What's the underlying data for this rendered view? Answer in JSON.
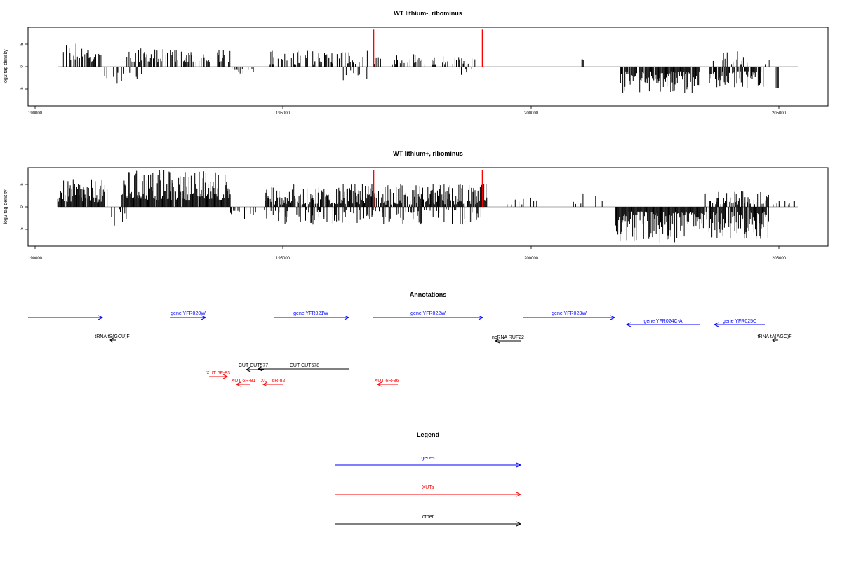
{
  "chart_data": [
    {
      "type": "bar",
      "title": "WT lithium-, ribominus",
      "ylabel": "log2 tag density",
      "xlim": [
        189800,
        206000
      ],
      "ylim": [
        -8.5,
        8.5
      ],
      "xticks": [
        "190000",
        "195000",
        "200000",
        "205000"
      ],
      "yticks": [
        "5",
        "0",
        "-5"
      ],
      "series": [
        {
          "color": "#000000",
          "note": "black spikes, log2 tag density by genomic position",
          "segments": [
            {
              "from": 190500,
              "to": 191300,
              "sign": 1,
              "min": 1,
              "max": 5.5,
              "density": 0.5
            },
            {
              "from": 191350,
              "to": 192100,
              "sign": -1,
              "min": 1,
              "max": 4,
              "density": 0.25
            },
            {
              "from": 191800,
              "to": 193900,
              "sign": 1,
              "min": 1,
              "max": 4,
              "density": 0.55
            },
            {
              "from": 193900,
              "to": 194400,
              "sign": -1,
              "min": 0.5,
              "max": 2.2,
              "density": 0.2
            },
            {
              "from": 194700,
              "to": 196700,
              "sign": 1,
              "min": 0.5,
              "max": 3.6,
              "density": 0.45
            },
            {
              "from": 195900,
              "to": 196700,
              "sign": -1,
              "min": 0.5,
              "max": 3,
              "density": 0.2
            },
            {
              "from": 196700,
              "to": 198900,
              "sign": 1,
              "min": 0.5,
              "max": 3,
              "density": 0.3
            },
            {
              "from": 198500,
              "to": 198800,
              "sign": -1,
              "min": 0.5,
              "max": 2.5,
              "density": 0.2
            },
            {
              "from": 201000,
              "to": 201050,
              "sign": 1,
              "min": 1.5,
              "max": 1.6,
              "density": 0.5
            },
            {
              "from": 201800,
              "to": 203400,
              "sign": -1,
              "min": 1,
              "max": 6,
              "density": 0.9
            },
            {
              "from": 203600,
              "to": 204400,
              "sign": 1,
              "min": 0.5,
              "max": 3.5,
              "density": 0.3
            },
            {
              "from": 203600,
              "to": 204700,
              "sign": -1,
              "min": 1,
              "max": 5,
              "density": 0.7
            },
            {
              "from": 204700,
              "to": 204900,
              "sign": 1,
              "min": 0.5,
              "max": 1.5,
              "density": 0.3
            },
            {
              "from": 204950,
              "to": 205000,
              "sign": -1,
              "min": 4.5,
              "max": 5,
              "density": 0.5
            }
          ]
        },
        {
          "color": "#ff0000",
          "note": "red marker lines",
          "points": [
            {
              "x": 196800,
              "y": 8
            },
            {
              "x": 199000,
              "y": 8
            }
          ]
        }
      ]
    },
    {
      "type": "bar",
      "title": "WT lithium+, ribominus",
      "ylabel": "log2 tag density",
      "xlim": [
        189800,
        206000
      ],
      "ylim": [
        -8.5,
        8.5
      ],
      "xticks": [
        "190000",
        "195000",
        "200000",
        "205000"
      ],
      "yticks": [
        "5",
        "0",
        "-5"
      ],
      "series": [
        {
          "color": "#000000",
          "note": "black spikes, log2 tag density by genomic position",
          "segments": [
            {
              "from": 190400,
              "to": 191400,
              "sign": 1,
              "min": 1,
              "max": 6,
              "density": 0.9
            },
            {
              "from": 191400,
              "to": 191800,
              "sign": -1,
              "min": 0.5,
              "max": 5,
              "density": 0.3
            },
            {
              "from": 191700,
              "to": 193900,
              "sign": 1,
              "min": 1.5,
              "max": 8,
              "density": 0.95
            },
            {
              "from": 193900,
              "to": 194600,
              "sign": -1,
              "min": 0.5,
              "max": 3,
              "density": 0.3
            },
            {
              "from": 194600,
              "to": 199100,
              "sign": 1,
              "min": 0.5,
              "max": 5,
              "density": 0.85
            },
            {
              "from": 194600,
              "to": 199000,
              "sign": -1,
              "min": 0.5,
              "max": 4,
              "density": 0.4
            },
            {
              "from": 199100,
              "to": 201500,
              "sign": 1,
              "min": 0.5,
              "max": 3,
              "density": 0.08
            },
            {
              "from": 201700,
              "to": 203500,
              "sign": -1,
              "min": 1,
              "max": 8,
              "density": 1.0
            },
            {
              "from": 203500,
              "to": 204800,
              "sign": 1,
              "min": 0.5,
              "max": 3.5,
              "density": 0.6
            },
            {
              "from": 203500,
              "to": 204800,
              "sign": -1,
              "min": 1,
              "max": 7,
              "density": 0.9
            },
            {
              "from": 204800,
              "to": 205400,
              "sign": 1,
              "min": 0.5,
              "max": 1.5,
              "density": 0.2
            }
          ]
        },
        {
          "color": "#ff0000",
          "note": "red marker lines",
          "points": [
            {
              "x": 196800,
              "y": 8
            },
            {
              "x": 199000,
              "y": 8
            }
          ]
        }
      ]
    }
  ],
  "annotations": {
    "title": "Annotations",
    "items": [
      {
        "label": "",
        "color": "#0000ff"
      },
      {
        "label": "gene YFR020W",
        "color": "#0000ff"
      },
      {
        "label": "gene YFR021W",
        "color": "#0000ff"
      },
      {
        "label": "gene YFR022W",
        "color": "#0000ff"
      },
      {
        "label": "gene YFR023W",
        "color": "#0000ff"
      },
      {
        "label": "gene YFR024C-A",
        "color": "#0000ff"
      },
      {
        "label": "gene YFR025C",
        "color": "#0000ff"
      },
      {
        "label": "tRNA tS(GCU)F",
        "color": "#000000"
      },
      {
        "label": "ncRNA RUF22",
        "color": "#000000"
      },
      {
        "label": "tRNA tA(AGC)F",
        "color": "#000000"
      },
      {
        "label": "CUT CUT577",
        "color": "#000000"
      },
      {
        "label": "CUT CUT578",
        "color": "#000000"
      },
      {
        "label": "XUT 6F-83",
        "color": "#ff0000"
      },
      {
        "label": "XUT 6R-81",
        "color": "#ff0000"
      },
      {
        "label": "XUT 6R-82",
        "color": "#ff0000"
      },
      {
        "label": "XUT 6R-86",
        "color": "#ff0000"
      }
    ]
  },
  "legend": {
    "title": "Legend",
    "entries": [
      {
        "label": "genes",
        "color": "#0000ff"
      },
      {
        "label": "XUTs",
        "color": "#ff0000"
      },
      {
        "label": "other",
        "color": "#000000"
      }
    ]
  }
}
